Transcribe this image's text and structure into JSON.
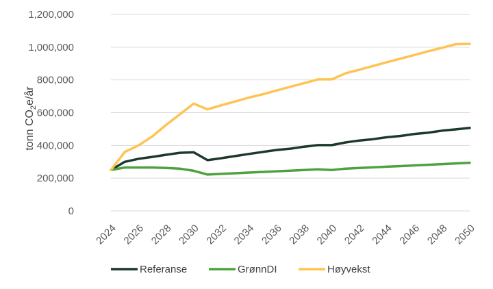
{
  "chart_data": {
    "type": "line",
    "title": "",
    "xlabel": "",
    "ylabel_main": "tonn CO",
    "ylabel_sub": "2",
    "ylabel_tail": "e/år",
    "ylim": [
      0,
      1200000
    ],
    "yticks": [
      0,
      200000,
      400000,
      600000,
      800000,
      1000000,
      1200000
    ],
    "ytick_labels": [
      "0",
      "200,000",
      "400,000",
      "600,000",
      "800,000",
      "1,000,000",
      "1,200,000"
    ],
    "xlim": [
      2024,
      2050
    ],
    "xticks": [
      2024,
      2026,
      2028,
      2030,
      2032,
      2034,
      2036,
      2038,
      2040,
      2042,
      2044,
      2046,
      2048,
      2050
    ],
    "xtick_labels": [
      "2024",
      "2026",
      "2028",
      "2030",
      "2032",
      "2034",
      "2036",
      "2038",
      "2040",
      "2042",
      "2044",
      "2046",
      "2048",
      "2050"
    ],
    "grid": "horizontal",
    "legend_position": "bottom",
    "x": [
      2024,
      2025,
      2026,
      2027,
      2028,
      2029,
      2030,
      2031,
      2032,
      2033,
      2034,
      2035,
      2036,
      2037,
      2038,
      2039,
      2040,
      2041,
      2042,
      2043,
      2044,
      2045,
      2046,
      2047,
      2048,
      2049,
      2050
    ],
    "series": [
      {
        "name": "Referanse",
        "color": "#1c3a2a",
        "values": [
          250000,
          300000,
          318000,
          330000,
          343000,
          355000,
          358000,
          310000,
          322000,
          335000,
          348000,
          360000,
          372000,
          380000,
          392000,
          402000,
          402000,
          418000,
          430000,
          438000,
          450000,
          458000,
          470000,
          478000,
          490000,
          498000,
          507000
        ]
      },
      {
        "name": "GrønnDI",
        "color": "#4ea23e",
        "values": [
          250000,
          265000,
          265000,
          265000,
          262000,
          258000,
          245000,
          222000,
          226000,
          230000,
          234000,
          238000,
          242000,
          246000,
          250000,
          254000,
          250000,
          258000,
          262000,
          266000,
          270000,
          274000,
          278000,
          282000,
          286000,
          290000,
          294000
        ]
      },
      {
        "name": "Høyvekst",
        "color": "#ffc352",
        "values": [
          250000,
          360000,
          400000,
          455000,
          525000,
          590000,
          655000,
          620000,
          645000,
          668000,
          692000,
          712000,
          735000,
          758000,
          780000,
          803000,
          803000,
          840000,
          862000,
          885000,
          908000,
          930000,
          952000,
          975000,
          996000,
          1018000,
          1020000
        ]
      }
    ]
  }
}
